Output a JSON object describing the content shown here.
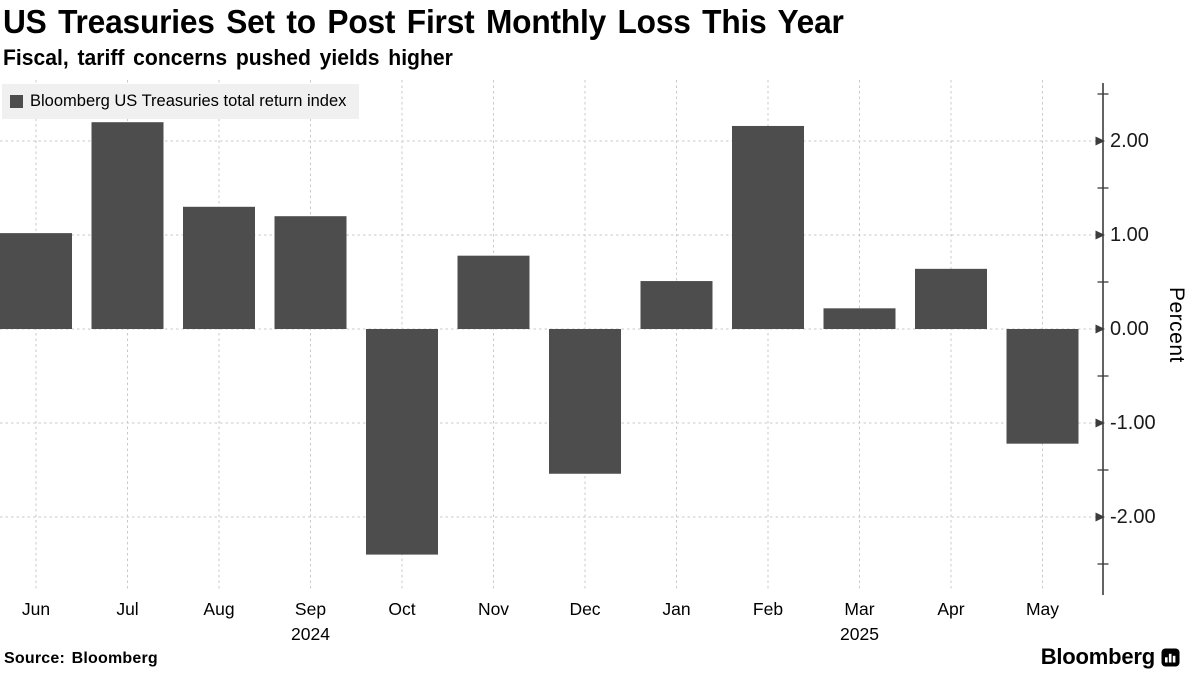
{
  "header": {},
  "legend": {},
  "footer": {
    "source": "Source: Bloomberg",
    "brand": "Bloomberg",
    "brand_icon": "bar-chart-icon"
  },
  "chart_data": {
    "type": "bar",
    "title": "US Treasuries Set to Post First Monthly Loss This Year",
    "subtitle": "Fiscal, tariff concerns pushed yields higher",
    "series_name": "Bloomberg US Treasuries total return index",
    "categories": [
      "Jun",
      "Jul",
      "Aug",
      "Sep",
      "Oct",
      "Nov",
      "Dec",
      "Jan",
      "Feb",
      "Mar",
      "Apr",
      "May"
    ],
    "year_labels": [
      {
        "index": 3,
        "label": "2024"
      },
      {
        "index": 9,
        "label": "2025"
      }
    ],
    "values": [
      1.02,
      2.2,
      1.3,
      1.2,
      -2.4,
      0.78,
      -1.54,
      0.51,
      2.16,
      0.22,
      0.64,
      -1.22
    ],
    "xlabel": "",
    "ylabel": "Percent",
    "ylim": [
      -2.8,
      2.65
    ],
    "yticks_major": [
      2,
      1,
      0,
      -1,
      -2
    ],
    "ytick_labels": [
      "2.00",
      "1.00",
      "0.00",
      "-1.00",
      "-2.00"
    ],
    "yticks_minor": [
      2.5,
      1.5,
      0.5,
      -0.5,
      -1.5,
      -2.5
    ],
    "grid": true,
    "legend_position": "top-left",
    "bar_color": "#4d4d4d",
    "grid_color": "#c9c9c9",
    "axis_color": "#3c3c3c",
    "tick_label_color": "#1a1a1a",
    "legend_bg_color": "#f0f0f0"
  }
}
